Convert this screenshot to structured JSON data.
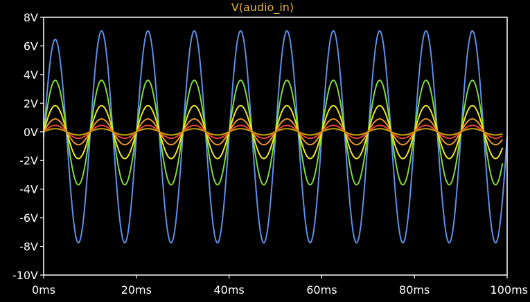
{
  "chart_data": {
    "type": "line",
    "title": "V(audio_in)",
    "xlabel": "",
    "ylabel": "",
    "xlim": [
      0,
      100
    ],
    "ylim": [
      -10,
      8
    ],
    "x_ticks": [
      0,
      20,
      40,
      60,
      80,
      100
    ],
    "x_tick_labels": [
      "0ms",
      "20ms",
      "40ms",
      "60ms",
      "80ms",
      "100ms"
    ],
    "y_ticks": [
      8,
      6,
      4,
      2,
      0,
      -2,
      -4,
      -6,
      -8,
      -10
    ],
    "y_tick_labels": [
      "8V",
      "6V",
      "4V",
      "2V",
      "0V",
      "-2V",
      "-4V",
      "-6V",
      "-8V",
      "-10V"
    ],
    "grid": false,
    "legend": "none",
    "waveform": "sine",
    "frequency_hz": 100,
    "x_unit": "ms",
    "y_unit": "V",
    "background_color": "#000000",
    "axis_color": "#ffffff",
    "title_color": "#e6b43c",
    "series": [
      {
        "color": "#5f8fe8",
        "amplitude": 7.4,
        "offset": -0.35,
        "phase_deg": 0,
        "x_end": 100,
        "note_start": "first peak 6.5V, trough -8V"
      },
      {
        "color": "#7fdc3a",
        "amplitude": 3.65,
        "offset": -0.05,
        "phase_deg": 0,
        "x_end": 99
      },
      {
        "color": "#f2ea1c",
        "amplitude": 1.85,
        "offset": -0.02,
        "phase_deg": 0,
        "x_end": 99
      },
      {
        "color": "#f09a2a",
        "amplitude": 0.9,
        "offset": 0,
        "phase_deg": 0,
        "x_end": 99
      },
      {
        "color": "#e8463a",
        "amplitude": 0.45,
        "offset": 0,
        "phase_deg": 0,
        "x_end": 99
      },
      {
        "color": "#c8a000",
        "amplitude": 0.22,
        "offset": 0,
        "phase_deg": 0,
        "x_end": 99
      }
    ]
  }
}
